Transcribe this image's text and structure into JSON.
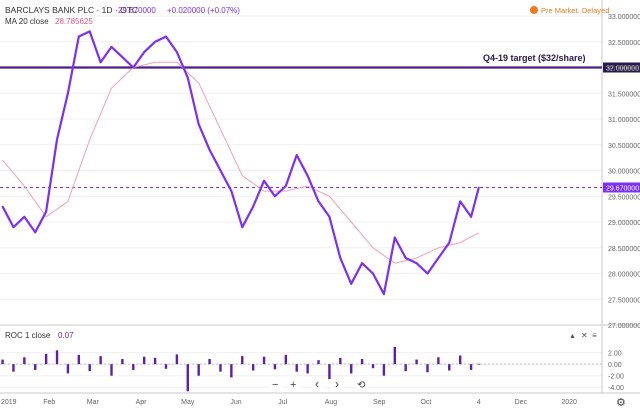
{
  "header": {
    "symbol_title": "BARCLAYS BANK PLC · 1D · OTC",
    "last_price": "29.670000",
    "change": "+0.020000 (+0.07%)",
    "status": "Pre Market. Delayed"
  },
  "ma_legend": {
    "label": "MA 20 close",
    "value": "28.785625"
  },
  "target_label": "Q4-19 target ($32/share)",
  "roc_legend": {
    "label": "ROC 1 close",
    "value": "0.07"
  },
  "current_price_label": "29.670000",
  "target_price_label": "32.000000",
  "price_axis_labels": [
    "33.000000",
    "32.500000",
    "32.000000",
    "31.500000",
    "31.000000",
    "30.500000",
    "30.000000",
    "29.500000",
    "29.000000",
    "28.500000",
    "28.000000",
    "27.500000",
    "27.000000"
  ],
  "roc_axis_labels": [
    "2.00",
    "0.00",
    "-2.00",
    "-4.00"
  ],
  "x_axis_labels": [
    "2019",
    "Feb",
    "Mar",
    "Apr",
    "May",
    "Jun",
    "Jul",
    "Aug",
    "Sep",
    "Oct",
    "4",
    "Dec",
    "2020"
  ],
  "controls": {
    "minus": "−",
    "plus": "+",
    "prev": "‹",
    "next": "›",
    "reset": "⟲",
    "settings": "⚙",
    "up": "▲",
    "close": "✕",
    "menu": "≡"
  },
  "colors": {
    "price": "#7b2ff7",
    "ma": "#f2a0b6",
    "target": "#4b1f8c",
    "roc": "#5b1fa8",
    "up": "#26a69a",
    "status": "#f07b1e"
  },
  "chart_data": [
    {
      "type": "line",
      "title": "BARCLAYS BANK PLC · 1D · OTC",
      "y_axis_position": "right",
      "ylim": [
        27.0,
        33.0
      ],
      "series": [
        {
          "name": "BARCLAYS BANK PLC",
          "x": [
            "2019-01-02",
            "2019-01-09",
            "2019-01-16",
            "2019-01-23",
            "2019-01-30",
            "2019-02-06",
            "2019-02-13",
            "2019-02-20",
            "2019-02-27",
            "2019-03-06",
            "2019-03-13",
            "2019-03-20",
            "2019-03-27",
            "2019-04-03",
            "2019-04-10",
            "2019-04-17",
            "2019-04-24",
            "2019-05-01",
            "2019-05-08",
            "2019-05-15",
            "2019-05-22",
            "2019-05-29",
            "2019-06-05",
            "2019-06-12",
            "2019-06-19",
            "2019-06-26",
            "2019-07-03",
            "2019-07-10",
            "2019-07-17",
            "2019-07-24",
            "2019-07-31",
            "2019-08-07",
            "2019-08-14",
            "2019-08-21",
            "2019-08-28",
            "2019-09-04",
            "2019-09-11",
            "2019-09-18",
            "2019-09-25",
            "2019-10-02",
            "2019-10-09",
            "2019-10-16",
            "2019-10-23",
            "2019-10-30",
            "2019-11-04"
          ],
          "values": [
            29.3,
            28.9,
            29.1,
            28.8,
            29.2,
            30.6,
            31.5,
            32.6,
            32.7,
            32.1,
            32.4,
            32.2,
            32.0,
            32.3,
            32.5,
            32.6,
            32.3,
            31.8,
            30.9,
            30.4,
            30.0,
            29.6,
            28.9,
            29.3,
            29.8,
            29.5,
            29.7,
            30.3,
            29.9,
            29.4,
            29.1,
            28.3,
            27.8,
            28.2,
            28.0,
            27.6,
            28.7,
            28.3,
            28.2,
            28.0,
            28.3,
            28.6,
            29.4,
            29.1,
            29.67
          ]
        },
        {
          "name": "MA 20 close",
          "x": [
            "2019-01-02",
            "2019-01-16",
            "2019-01-30",
            "2019-02-13",
            "2019-02-27",
            "2019-03-13",
            "2019-03-27",
            "2019-04-10",
            "2019-04-24",
            "2019-05-08",
            "2019-05-22",
            "2019-06-05",
            "2019-06-19",
            "2019-07-03",
            "2019-07-17",
            "2019-07-31",
            "2019-08-14",
            "2019-08-28",
            "2019-09-11",
            "2019-09-25",
            "2019-10-09",
            "2019-10-23",
            "2019-11-04"
          ],
          "values": [
            30.2,
            29.7,
            29.1,
            29.4,
            30.6,
            31.6,
            32.0,
            32.1,
            32.1,
            31.7,
            30.8,
            29.9,
            29.6,
            29.6,
            29.7,
            29.5,
            29.0,
            28.5,
            28.2,
            28.3,
            28.5,
            28.6,
            28.79
          ]
        },
        {
          "name": "Q4-19 target ($32/share)",
          "x": [
            "2019-01-01",
            "2019-11-04"
          ],
          "values": [
            32.0,
            32.0
          ]
        }
      ]
    },
    {
      "type": "bar",
      "title": "ROC 1 close",
      "y_axis_position": "right",
      "ylim": [
        -5.0,
        3.5
      ],
      "categories": [
        "2019-01-02",
        "2019-01-09",
        "2019-01-16",
        "2019-01-23",
        "2019-01-30",
        "2019-02-06",
        "2019-02-13",
        "2019-02-20",
        "2019-02-27",
        "2019-03-06",
        "2019-03-13",
        "2019-03-20",
        "2019-03-27",
        "2019-04-03",
        "2019-04-10",
        "2019-04-17",
        "2019-04-24",
        "2019-05-01",
        "2019-05-08",
        "2019-05-15",
        "2019-05-22",
        "2019-05-29",
        "2019-06-05",
        "2019-06-12",
        "2019-06-19",
        "2019-06-26",
        "2019-07-03",
        "2019-07-10",
        "2019-07-17",
        "2019-07-24",
        "2019-07-31",
        "2019-08-07",
        "2019-08-14",
        "2019-08-21",
        "2019-08-28",
        "2019-09-04",
        "2019-09-11",
        "2019-09-18",
        "2019-09-25",
        "2019-10-02",
        "2019-10-09",
        "2019-10-16",
        "2019-10-23",
        "2019-10-30",
        "2019-11-04"
      ],
      "values": [
        0.8,
        -1.3,
        1.2,
        -1.0,
        1.8,
        2.4,
        -1.6,
        1.6,
        -1.2,
        1.4,
        -2.0,
        0.9,
        -1.0,
        1.3,
        1.1,
        -0.8,
        1.7,
        -4.7,
        -2.0,
        0.9,
        -1.3,
        -2.3,
        1.4,
        -1.1,
        1.3,
        -0.9,
        1.6,
        -1.3,
        -1.6,
        0.7,
        -2.6,
        1.1,
        -1.6,
        0.9,
        -0.7,
        -2.0,
        3.0,
        -1.2,
        0.8,
        -1.4,
        1.2,
        -1.1,
        1.5,
        -1.0,
        0.07
      ]
    }
  ]
}
